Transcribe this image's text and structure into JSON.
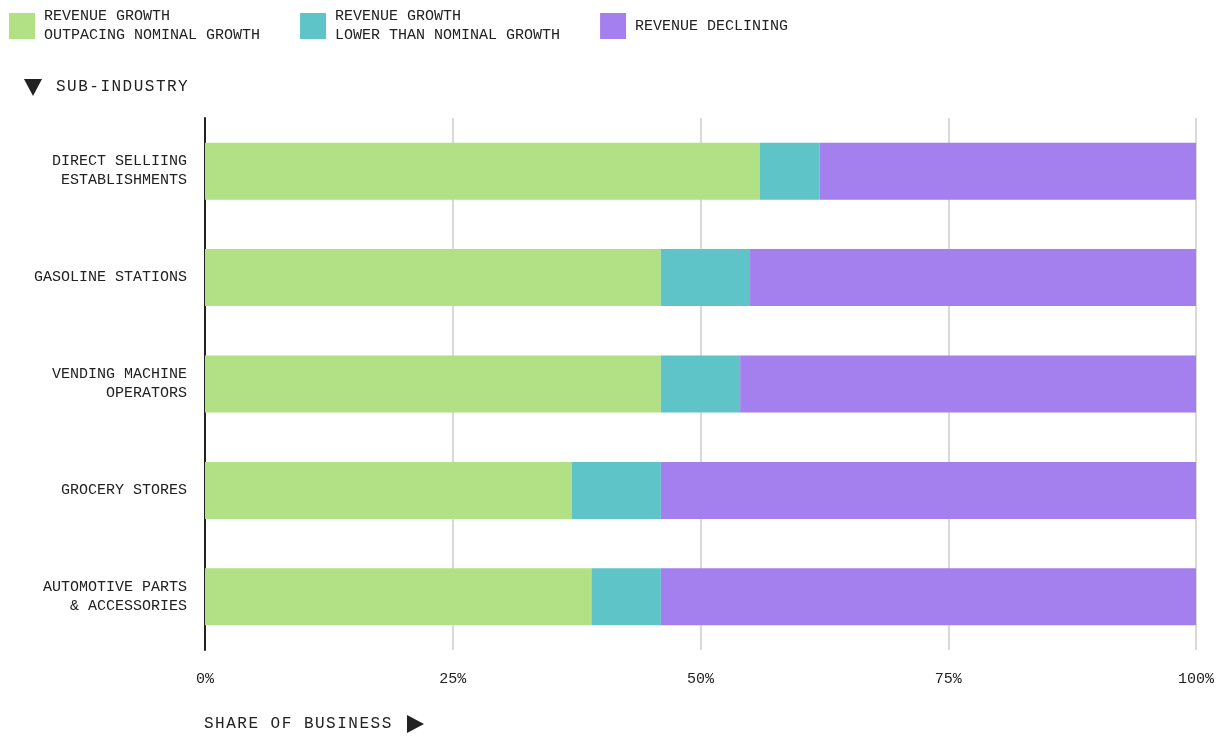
{
  "chart_data": {
    "type": "bar",
    "orientation": "horizontal",
    "stacked": true,
    "xlabel": "SHARE OF BUSINESS",
    "ylabel": "SUB-INDUSTRY",
    "categories": [
      "DIRECT SELLIING\nESTABLISHMENTS",
      "GASOLINE STATIONS",
      "VENDING MACHINE\nOPERATORS",
      "GROCERY STORES",
      "AUTOMOTIVE PARTS\n& ACCESSORIES"
    ],
    "series": [
      {
        "name": "REVENUE GROWTH\nOUTPACING NOMINAL GROWTH",
        "color": "#b2e185",
        "values": [
          56,
          46,
          46,
          37,
          39
        ]
      },
      {
        "name": "REVENUE GROWTH\nLOWER THAN NOMINAL GROWTH",
        "color": "#5fc4c8",
        "values": [
          6,
          9,
          8,
          9,
          7
        ]
      },
      {
        "name": "REVENUE DECLINING",
        "color": "#a380ee",
        "values": [
          38,
          45,
          46,
          54,
          54
        ]
      }
    ],
    "xlim": [
      0,
      100
    ],
    "xticks": [
      {
        "value": 0,
        "label": "0%"
      },
      {
        "value": 25,
        "label": "25%"
      },
      {
        "value": 50,
        "label": "50%"
      },
      {
        "value": 75,
        "label": "75%"
      },
      {
        "value": 100,
        "label": "100%"
      }
    ],
    "grid": "x",
    "legend": "top left"
  }
}
